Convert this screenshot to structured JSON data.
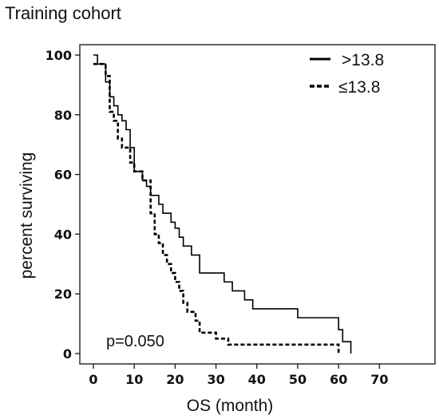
{
  "chart_data": {
    "type": "line",
    "title": "Training cohort",
    "xlabel": "OS (month)",
    "ylabel": "percent surviving",
    "xlim": [
      0,
      73
    ],
    "ylim": [
      0,
      100
    ],
    "xticks": [
      "0",
      "10",
      "20",
      "30",
      "40",
      "50",
      "60",
      "70"
    ],
    "yticks": [
      "0",
      "20",
      "40",
      "60",
      "80",
      "100"
    ],
    "legend_position": "top-right",
    "grid": false,
    "annotation": "p=0.050",
    "series": [
      {
        "name": ">13.8",
        "style": "solid",
        "color": "#000000",
        "steps": [
          [
            0,
            100
          ],
          [
            1,
            97
          ],
          [
            3,
            91
          ],
          [
            4,
            86
          ],
          [
            5,
            83
          ],
          [
            6,
            80
          ],
          [
            7,
            78
          ],
          [
            8,
            75
          ],
          [
            9,
            69
          ],
          [
            10,
            61
          ],
          [
            12,
            58
          ],
          [
            13,
            56
          ],
          [
            14,
            53
          ],
          [
            16,
            50
          ],
          [
            17,
            47
          ],
          [
            19,
            44
          ],
          [
            20,
            42
          ],
          [
            21,
            39
          ],
          [
            22,
            36
          ],
          [
            24,
            33
          ],
          [
            26,
            27
          ],
          [
            32,
            24
          ],
          [
            34,
            21
          ],
          [
            37,
            18
          ],
          [
            39,
            15
          ],
          [
            50,
            12
          ],
          [
            60,
            8
          ],
          [
            61,
            4
          ],
          [
            63,
            0
          ]
        ]
      },
      {
        "name": "≤13.8",
        "style": "dashed",
        "color": "#000000",
        "steps": [
          [
            0,
            97
          ],
          [
            3,
            93
          ],
          [
            4,
            81
          ],
          [
            5,
            78
          ],
          [
            6,
            72
          ],
          [
            7,
            69
          ],
          [
            9,
            64
          ],
          [
            10,
            61
          ],
          [
            12,
            58
          ],
          [
            14,
            47
          ],
          [
            15,
            40
          ],
          [
            16,
            37
          ],
          [
            17,
            33
          ],
          [
            18,
            30
          ],
          [
            19,
            27
          ],
          [
            20,
            24
          ],
          [
            21,
            21
          ],
          [
            22,
            17
          ],
          [
            23,
            14
          ],
          [
            25,
            11
          ],
          [
            26,
            7
          ],
          [
            30,
            5
          ],
          [
            33,
            3
          ],
          [
            60,
            0
          ]
        ]
      }
    ]
  }
}
